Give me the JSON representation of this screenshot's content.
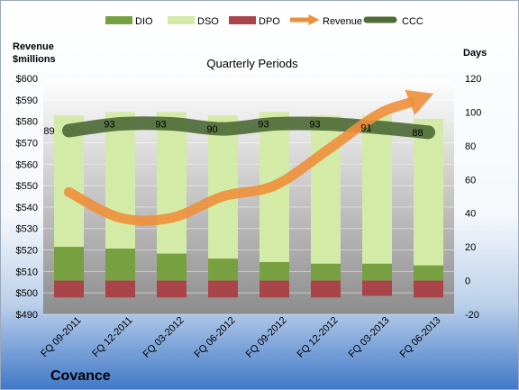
{
  "chart_data": {
    "type": "bar",
    "company": "Covance",
    "subtitle": "Quarterly Periods",
    "y_left_label_line1": "Revenue",
    "y_left_label_line2": "$millions",
    "y_right_label": "Days",
    "y_left_lim": [
      490,
      600
    ],
    "y_left_ticks": [
      "$490",
      "$500",
      "$510",
      "$520",
      "$530",
      "$540",
      "$550",
      "$560",
      "$570",
      "$580",
      "$590",
      "$600"
    ],
    "y_left_tick_values": [
      490,
      500,
      510,
      520,
      530,
      540,
      550,
      560,
      570,
      580,
      590,
      600
    ],
    "y_right_lim": [
      -20,
      120
    ],
    "y_right_ticks": [
      "-20",
      "0",
      "20",
      "40",
      "60",
      "80",
      "100",
      "120"
    ],
    "y_right_tick_values": [
      -20,
      0,
      20,
      40,
      60,
      80,
      100,
      120
    ],
    "categories": [
      "FQ 09-2011",
      "FQ 12-2011",
      "FQ 03-2012",
      "FQ 06-2012",
      "FQ 09-2012",
      "FQ 12-2012",
      "FQ 03-2013",
      "FQ 06-2013"
    ],
    "series": [
      {
        "name": "DIO",
        "type": "stacked-bar",
        "axis": "right",
        "values": [
          20,
          19,
          16,
          13,
          11,
          10,
          10,
          9
        ]
      },
      {
        "name": "DSO",
        "type": "stacked-bar",
        "axis": "right",
        "values": [
          78,
          81,
          84,
          85,
          89,
          88,
          88,
          87
        ]
      },
      {
        "name": "DPO",
        "type": "bar",
        "axis": "right",
        "values": [
          -10,
          -10,
          -10,
          -10,
          -10,
          -10,
          -9,
          -10
        ]
      },
      {
        "name": "Revenue",
        "type": "line",
        "axis": "left",
        "values": [
          547,
          535,
          535,
          545,
          550,
          566,
          583,
          592
        ]
      },
      {
        "name": "CCC",
        "type": "line",
        "axis": "right",
        "values": [
          89,
          93,
          93,
          90,
          93,
          93,
          91,
          88
        ],
        "labels": [
          "89",
          "93",
          "93",
          "90",
          "93",
          "93",
          "91",
          "88"
        ]
      }
    ],
    "colors": {
      "DIO": "#77a040",
      "DSO": "#d3eba7",
      "DPO": "#a8444a",
      "Revenue": "#ee8f3a",
      "CCC": "#4f6b38"
    },
    "legend": {
      "placement": "top",
      "items": [
        "DIO",
        "DSO",
        "DPO",
        "Revenue",
        "CCC"
      ]
    },
    "grid": true
  }
}
